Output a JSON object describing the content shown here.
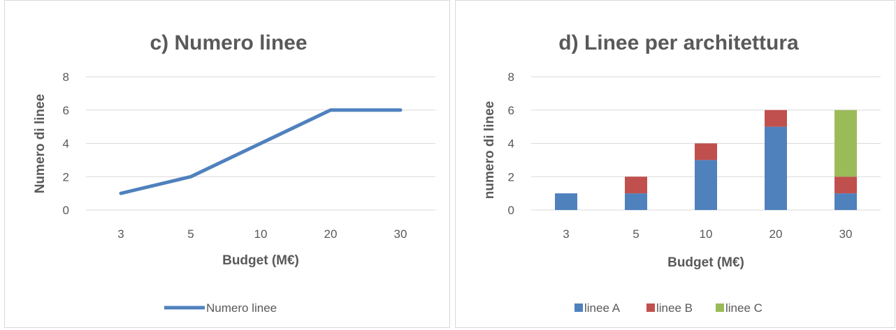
{
  "chart_data": [
    {
      "type": "line",
      "title": "c) Numero linee",
      "xlabel": "Budget (M€)",
      "ylabel": "Numero di linee",
      "categories": [
        "3",
        "5",
        "10",
        "20",
        "30"
      ],
      "series": [
        {
          "name": "Numero linee",
          "values": [
            1,
            2,
            4,
            6,
            6
          ],
          "color": "#4f81bd"
        }
      ],
      "ylim": [
        0,
        8
      ],
      "yticks": [
        "0",
        "2",
        "4",
        "6",
        "8"
      ],
      "grid": true,
      "legend_position": "bottom"
    },
    {
      "type": "bar",
      "stacked": true,
      "title": "d) Linee per architettura",
      "xlabel": "Budget (M€)",
      "ylabel": "numero di linee",
      "categories": [
        "3",
        "5",
        "10",
        "20",
        "30"
      ],
      "series": [
        {
          "name": "linee A",
          "values": [
            1,
            1,
            3,
            5,
            1
          ],
          "color": "#4f81bd"
        },
        {
          "name": "linee B",
          "values": [
            0,
            1,
            1,
            1,
            1
          ],
          "color": "#c0504d"
        },
        {
          "name": "linee C",
          "values": [
            0,
            0,
            0,
            0,
            4
          ],
          "color": "#9bbb59"
        }
      ],
      "ylim": [
        0,
        8
      ],
      "yticks": [
        "0",
        "2",
        "4",
        "6",
        "8"
      ],
      "grid": true,
      "legend_position": "bottom"
    }
  ]
}
